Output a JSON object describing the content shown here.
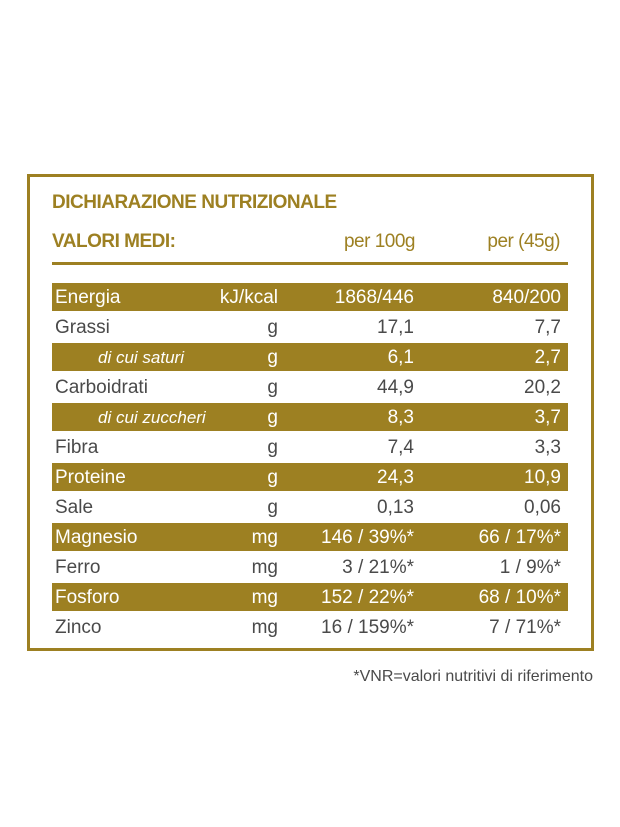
{
  "header": {
    "title": "DICHIARAZIONE NUTRIZIONALE",
    "subtitle": "VALORI MEDI:",
    "col_100g": "per 100g",
    "col_serving": "per (45g)"
  },
  "rows": [
    {
      "label": "Energia",
      "unit": "kJ/kcal",
      "per_100g": "1868/446",
      "per_serving": "840/200"
    },
    {
      "label": "Grassi",
      "unit": "g",
      "per_100g": "17,1",
      "per_serving": "7,7"
    },
    {
      "label": "di cui saturi",
      "unit": "g",
      "per_100g": "6,1",
      "per_serving": "2,7",
      "sub": true
    },
    {
      "label": "Carboidrati",
      "unit": "g",
      "per_100g": "44,9",
      "per_serving": "20,2"
    },
    {
      "label": "di cui zuccheri",
      "unit": "g",
      "per_100g": "8,3",
      "per_serving": "3,7",
      "sub": true
    },
    {
      "label": "Fibra",
      "unit": "g",
      "per_100g": "7,4",
      "per_serving": "3,3"
    },
    {
      "label": "Proteine",
      "unit": "g",
      "per_100g": "24,3",
      "per_serving": "10,9"
    },
    {
      "label": "Sale",
      "unit": "g",
      "per_100g": "0,13",
      "per_serving": "0,06"
    },
    {
      "label": "Magnesio",
      "unit": "mg",
      "per_100g": "146 / 39%*",
      "per_serving": "66 / 17%*"
    },
    {
      "label": "Ferro",
      "unit": "mg",
      "per_100g": "3 / 21%*",
      "per_serving": "1 / 9%*"
    },
    {
      "label": "Fosforo",
      "unit": "mg",
      "per_100g": "152 / 22%*",
      "per_serving": "68 / 10%*"
    },
    {
      "label": "Zinco",
      "unit": "mg",
      "per_100g": "16 / 159%*",
      "per_serving": "7 / 71%*"
    }
  ],
  "footnote": "*VNR=valori nutritivi di riferimento"
}
